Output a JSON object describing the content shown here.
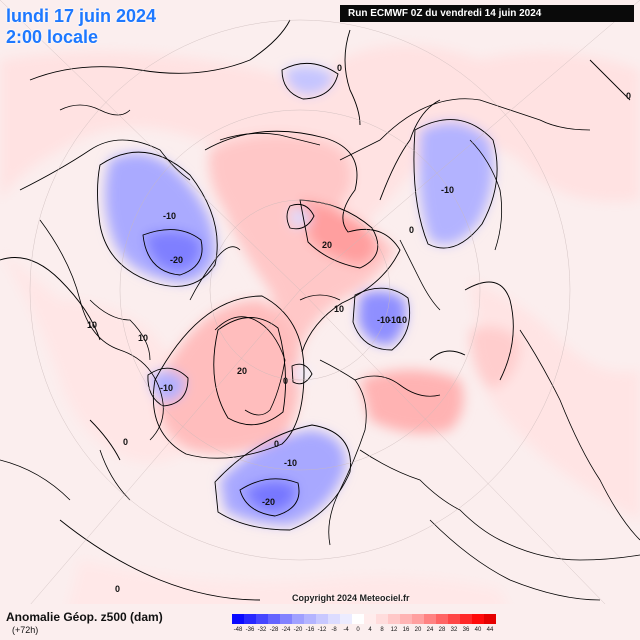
{
  "header": {
    "date_line": "lundi 17 juin 2024",
    "time_line": "2:00 locale",
    "run_label": "Run ECMWF 0Z du vendredi 14 juin 2024"
  },
  "footer": {
    "field_title": "Anomalie Géop. z500 (dam)",
    "step": "(+72h)",
    "copyright": "Copyright 2024 Meteociel.fr"
  },
  "colorbar": {
    "labels": [
      "-48",
      "-36",
      "-32",
      "-28",
      "-24",
      "-20",
      "-16",
      "-12",
      "-8",
      "-4",
      "0",
      "4",
      "8",
      "12",
      "16",
      "20",
      "24",
      "28",
      "32",
      "36",
      "40",
      "44"
    ],
    "colors": [
      "#0a0aff",
      "#2828ff",
      "#4646ff",
      "#6464ff",
      "#8282ff",
      "#a0a0ff",
      "#b4b4ff",
      "#c8c8ff",
      "#dcdcff",
      "#ececff",
      "#ffffff",
      "#ffecec",
      "#ffdcdc",
      "#ffc8c8",
      "#ffb4b4",
      "#ffa0a0",
      "#ff8282",
      "#ff6464",
      "#ff4646",
      "#ff2828",
      "#ff0a0a",
      "#e60000"
    ]
  },
  "contour_labels": {
    "lbl_0_top": "0",
    "lbl_neg10_alaska": "-10",
    "lbl_neg20_alaska": "-20",
    "lbl_20_arctic": "20",
    "lbl_10_arctic": "10",
    "lbl_neg10_siberia": "-10",
    "lbl_neg10_barents": "-10",
    "lbl_neg10_barents_b": "-10",
    "lbl_20_greenland": "20",
    "lbl_10_canada": "10",
    "lbl_10_canada_b": "10",
    "lbl_neg10_newfoundland": "-10",
    "lbl_neg10_atlantic": "-10",
    "lbl_neg20_atlantic": "-20",
    "lbl_0_atlantic": "0",
    "lbl_0_west": "0",
    "lbl_0_south": "0",
    "lbl_0_east": "0",
    "lbl_0_ne": "0",
    "lbl_10_right": "10",
    "lbl_0_mid": "0"
  }
}
